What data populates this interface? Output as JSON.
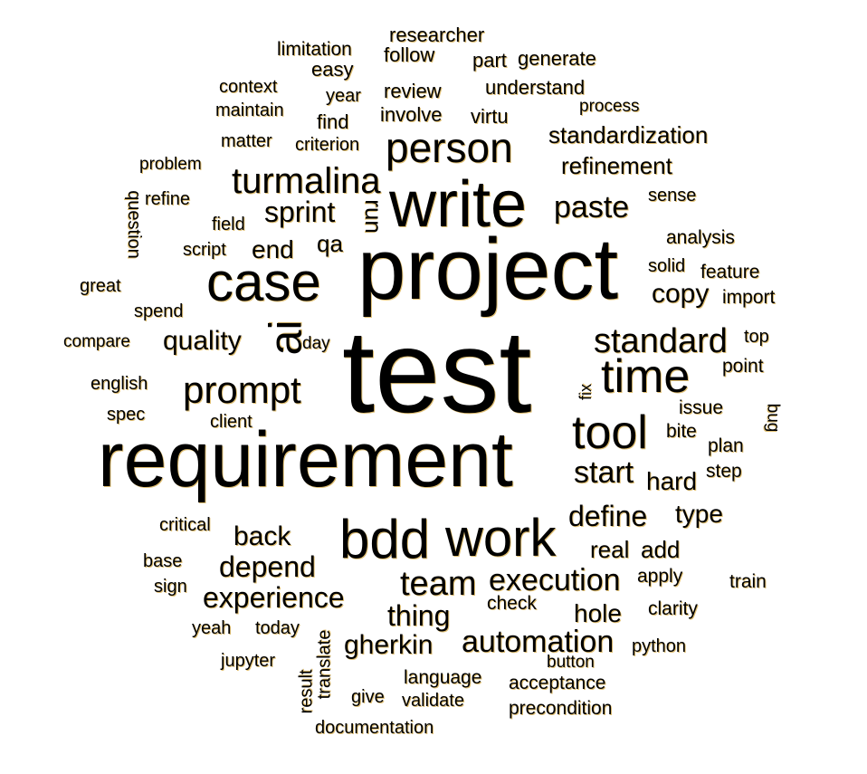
{
  "colors": {
    "background": "#ffffff",
    "text": "#000000",
    "shadow": "#c88c00"
  },
  "words": {
    "test": "test",
    "project": "project",
    "requirement": "requirement",
    "write": "write",
    "case": "case",
    "bdd": "bdd",
    "work": "work",
    "person": "person",
    "time": "time",
    "tool": "tool",
    "ai": "ai",
    "prompt": "prompt",
    "turmalina": "turmalina",
    "standard": "standard",
    "execution": "execution",
    "team": "team",
    "automation": "automation",
    "experience": "experience",
    "depend": "depend",
    "define": "define",
    "quality": "quality",
    "start": "start",
    "paste": "paste",
    "copy": "copy",
    "sprint": "sprint",
    "back": "back",
    "thing": "thing",
    "gherkin": "gherkin",
    "standardization": "standardization",
    "refinement": "refinement",
    "hard": "hard",
    "type": "type",
    "real": "real",
    "add": "add",
    "hole": "hole",
    "end": "end",
    "qa": "qa",
    "run": "run",
    "researcher": "researcher",
    "limitation": "limitation",
    "follow": "follow",
    "easy": "easy",
    "part": "part",
    "generate": "generate",
    "context": "context",
    "year": "year",
    "review": "review",
    "understand": "understand",
    "maintain": "maintain",
    "involve": "involve",
    "virtu": "virtu",
    "process": "process",
    "find": "find",
    "matter": "matter",
    "criterion": "criterion",
    "problem": "problem",
    "refine": "refine",
    "question": "question",
    "field": "field",
    "script": "script",
    "great": "great",
    "spend": "spend",
    "compare": "compare",
    "day": "day",
    "english": "english",
    "spec": "spec",
    "client": "client",
    "sense": "sense",
    "analysis": "analysis",
    "solid": "solid",
    "feature": "feature",
    "import": "import",
    "top": "top",
    "point": "point",
    "fix": "fix",
    "issue": "issue",
    "bug": "bug",
    "bite": "bite",
    "plan": "plan",
    "step": "step",
    "critical": "critical",
    "base": "base",
    "sign": "sign",
    "yeah": "yeah",
    "today": "today",
    "jupyter": "jupyter",
    "result": "result",
    "translate": "translate",
    "give": "give",
    "language": "language",
    "validate": "validate",
    "documentation": "documentation",
    "acceptance": "acceptance",
    "precondition": "precondition",
    "button": "button",
    "python": "python",
    "check": "check",
    "apply": "apply",
    "clarity": "clarity",
    "train": "train"
  }
}
